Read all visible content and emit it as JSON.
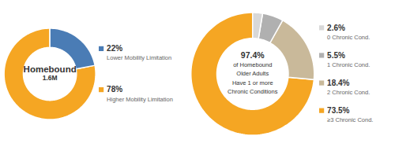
{
  "chart_data": [
    {
      "type": "donut",
      "categories": [
        "Higher Mobility Limitation",
        "Lower Mobility Limitation"
      ],
      "values": [
        78,
        22
      ],
      "value_labels": [
        "78%",
        "22%"
      ],
      "colors": [
        "#F5A623",
        "#4A7CB5"
      ],
      "data_labels": true,
      "annotations": [
        "Homebound",
        "1.6M"
      ]
    },
    {
      "type": "donut",
      "categories": [
        "≥3 Chronic Cond.",
        "2 Chronic Cond.",
        "1 Chronic Cond.",
        "0 Chronic Cond."
      ],
      "values": [
        73.5,
        18.4,
        5.5,
        2.6
      ],
      "value_labels": [
        "73.5%",
        "18.4%",
        "5.5%",
        "2.6%"
      ],
      "colors": [
        "#F5A623",
        "#C9B99A",
        "#B0B0B0",
        "#D8D8D8"
      ],
      "data_labels": true,
      "annotations": [
        "97.4%",
        "of Homebound",
        "Older Adults",
        "Have 1 or more",
        "Chronic Conditions"
      ]
    }
  ]
}
